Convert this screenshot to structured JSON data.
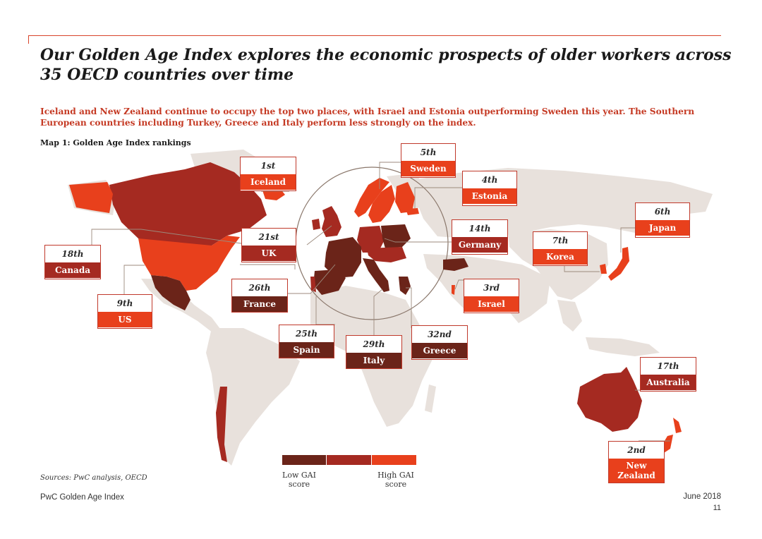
{
  "title": "Our Golden Age Index explores the economic prospects of older workers across 35 OECD countries over time",
  "subtitle": "Iceland and New Zealand continue to occupy the top two places, with Israel and Estonia outperforming Sweden this year. The Southern European countries including Turkey, Greece and Italy perform less strongly on the index.",
  "map_title": "Map 1: Golden Age Index rankings",
  "colors": {
    "low": "#6b2419",
    "mid": "#a52a21",
    "high": "#e8401c",
    "land": "#e8e1dc",
    "accent": "#c0392b"
  },
  "rankings": [
    {
      "rank": "1st",
      "country": "Iceland",
      "tier": "high"
    },
    {
      "rank": "5th",
      "country": "Sweden",
      "tier": "high"
    },
    {
      "rank": "4th",
      "country": "Estonia",
      "tier": "high"
    },
    {
      "rank": "6th",
      "country": "Japan",
      "tier": "high"
    },
    {
      "rank": "21st",
      "country": "UK",
      "tier": "mid"
    },
    {
      "rank": "14th",
      "country": "Germany",
      "tier": "mid"
    },
    {
      "rank": "7th",
      "country": "Korea",
      "tier": "high"
    },
    {
      "rank": "18th",
      "country": "Canada",
      "tier": "mid"
    },
    {
      "rank": "26th",
      "country": "France",
      "tier": "low"
    },
    {
      "rank": "3rd",
      "country": "Israel",
      "tier": "high"
    },
    {
      "rank": "9th",
      "country": "US",
      "tier": "high"
    },
    {
      "rank": "25th",
      "country": "Spain",
      "tier": "low"
    },
    {
      "rank": "32nd",
      "country": "Greece",
      "tier": "low"
    },
    {
      "rank": "29th",
      "country": "Italy",
      "tier": "low"
    },
    {
      "rank": "17th",
      "country": "Australia",
      "tier": "mid"
    },
    {
      "rank": "2nd",
      "country": "New Zealand",
      "tier": "high"
    }
  ],
  "legend": {
    "low_label": "Low GAI score",
    "high_label": "High GAI score"
  },
  "sources": "Sources: PwC analysis, OECD",
  "footer": {
    "left": "PwC Golden Age Index",
    "date": "June 2018",
    "page": "11"
  }
}
